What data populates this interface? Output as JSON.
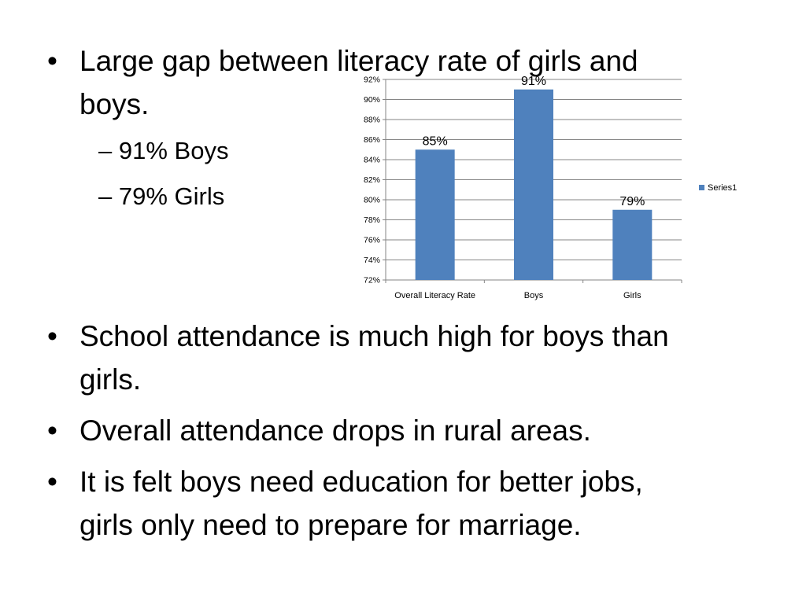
{
  "slide": {
    "bullets_top": [
      {
        "lines": [
          "Large gap between literacy rate of girls and",
          "boys."
        ]
      }
    ],
    "sub_bullets": [
      "91% Boys",
      "79% Girls"
    ],
    "bullets_bottom": [
      {
        "lines": [
          "School attendance is much high for boys than",
          "girls."
        ]
      },
      {
        "lines": [
          "Overall attendance drops in rural areas."
        ]
      },
      {
        "lines": [
          "It is felt boys need education for better jobs,",
          "girls only need to prepare for marriage."
        ]
      }
    ],
    "bullet_symbol": "•",
    "sub_bullet_symbol": "–"
  },
  "chart_data": {
    "type": "bar",
    "categories": [
      "Overall Literacy Rate",
      "Boys",
      "Girls"
    ],
    "series": [
      {
        "name": "Series1",
        "values": [
          85,
          91,
          79
        ],
        "color": "#4f81bd"
      }
    ],
    "data_labels": [
      "85%",
      "91%",
      "79%"
    ],
    "y_ticks": [
      "72%",
      "74%",
      "76%",
      "78%",
      "80%",
      "82%",
      "84%",
      "86%",
      "88%",
      "90%",
      "92%"
    ],
    "ylim": [
      72,
      92
    ],
    "title": "",
    "xlabel": "",
    "ylabel": "",
    "grid": true,
    "legend_position": "right"
  }
}
